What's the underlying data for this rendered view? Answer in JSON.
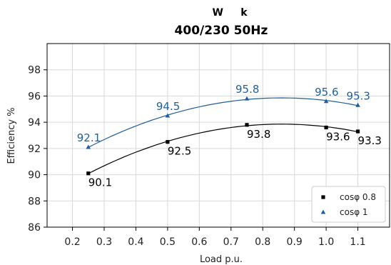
{
  "chart_data": {
    "type": "line",
    "title": "W     k",
    "subtitle": "400/230 50Hz",
    "xlabel": "Load p.u.",
    "ylabel": "Efficiency %",
    "xlim": [
      0.12,
      1.2
    ],
    "ylim": [
      86,
      100
    ],
    "xticks": [
      "0.2",
      "0.3",
      "0.4",
      "0.5",
      "0.6",
      "0.7",
      "0.8",
      "0.9",
      "1.0",
      "1.1"
    ],
    "yticks": [
      "86",
      "88",
      "90",
      "92",
      "94",
      "96",
      "98"
    ],
    "grid": true,
    "legend_position": "bottom-right",
    "series": [
      {
        "name": "cosφ 0.8",
        "color": "#000000",
        "marker": "square",
        "x": [
          0.25,
          0.5,
          0.75,
          1.0,
          1.1
        ],
        "values": [
          90.1,
          92.5,
          93.8,
          93.6,
          93.3
        ],
        "labels": [
          "90.1",
          "92.5",
          "93.8",
          "93.6",
          "93.3"
        ]
      },
      {
        "name": "cosφ 1",
        "color": "#1f5f9e",
        "marker": "triangle",
        "x": [
          0.25,
          0.5,
          0.75,
          1.0,
          1.1
        ],
        "values": [
          92.1,
          94.5,
          95.8,
          95.6,
          95.3
        ],
        "labels": [
          "92.1",
          "94.5",
          "95.8",
          "95.6",
          "95.3"
        ]
      }
    ]
  }
}
